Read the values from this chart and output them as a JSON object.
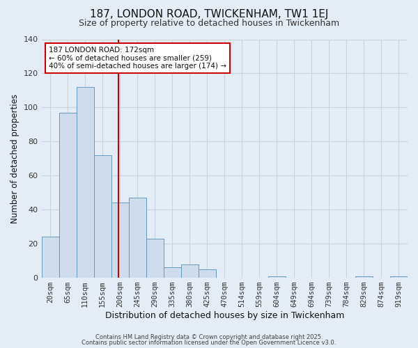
{
  "title": "187, LONDON ROAD, TWICKENHAM, TW1 1EJ",
  "subtitle": "Size of property relative to detached houses in Twickenham",
  "xlabel": "Distribution of detached houses by size in Twickenham",
  "ylabel": "Number of detached properties",
  "bar_color": "#cfdcec",
  "bar_edge_color": "#6699bb",
  "background_color": "#e4ecf5",
  "grid_color": "#d0dae8",
  "categories": [
    "20sqm",
    "65sqm",
    "110sqm",
    "155sqm",
    "200sqm",
    "245sqm",
    "290sqm",
    "335sqm",
    "380sqm",
    "425sqm",
    "470sqm",
    "514sqm",
    "559sqm",
    "604sqm",
    "649sqm",
    "694sqm",
    "739sqm",
    "784sqm",
    "829sqm",
    "874sqm",
    "919sqm"
  ],
  "values": [
    24,
    97,
    112,
    72,
    44,
    47,
    23,
    6,
    8,
    5,
    0,
    0,
    0,
    1,
    0,
    0,
    0,
    0,
    1,
    0,
    1
  ],
  "ylim": [
    0,
    140
  ],
  "yticks": [
    0,
    20,
    40,
    60,
    80,
    100,
    120,
    140
  ],
  "red_line_x": 3.92,
  "annotation_title": "187 LONDON ROAD: 172sqm",
  "annotation_line1": "← 60% of detached houses are smaller (259)",
  "annotation_line2": "40% of semi-detached houses are larger (174) →",
  "annotation_box_color": "#ffffff",
  "annotation_box_edge": "#cc0000",
  "footer1": "Contains HM Land Registry data © Crown copyright and database right 2025.",
  "footer2": "Contains public sector information licensed under the Open Government Licence v3.0."
}
